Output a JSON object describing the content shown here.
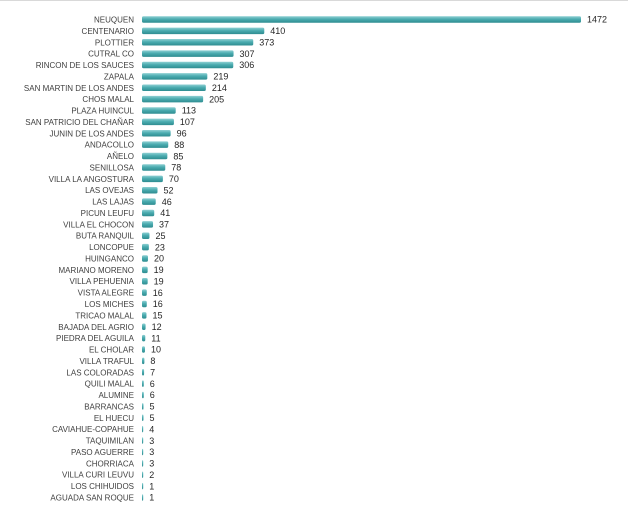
{
  "chart_data": {
    "type": "bar",
    "orientation": "horizontal",
    "colors": {
      "bar": "#4bacb0",
      "bar_top": "#8fd0d3",
      "bar_bottom": "#2e8c90"
    },
    "grid": false,
    "categories": [
      "NEUQUEN",
      "CENTENARIO",
      "PLOTTIER",
      "CUTRAL CO",
      "RINCON DE LOS SAUCES",
      "ZAPALA",
      "SAN MARTIN DE LOS ANDES",
      "CHOS MALAL",
      "PLAZA HUINCUL",
      "SAN PATRICIO DEL CHAÑAR",
      "JUNIN DE LOS ANDES",
      "ANDACOLLO",
      "AÑELO",
      "SENILLOSA",
      "VILLA LA ANGOSTURA",
      "LAS OVEJAS",
      "LAS LAJAS",
      "PICUN LEUFU",
      "VILLA EL CHOCON",
      "BUTA RANQUIL",
      "LONCOPUE",
      "HUINGANCO",
      "MARIANO MORENO",
      "VILLA PEHUENIA",
      "VISTA ALEGRE",
      "LOS MICHES",
      "TRICAO MALAL",
      "BAJADA DEL AGRIO",
      "PIEDRA DEL AGUILA",
      "EL CHOLAR",
      "VILLA TRAFUL",
      "LAS COLORADAS",
      "QUILI MALAL",
      "ALUMINE",
      "BARRANCAS",
      "EL HUECU",
      "CAVIAHUE-COPAHUE",
      "TAQUIMILAN",
      "PASO AGUERRE",
      "CHORRIACA",
      "VILLA CURI LEUVU",
      "LOS CHIHUIDOS",
      "AGUADA SAN ROQUE"
    ],
    "values": [
      1472,
      410,
      373,
      307,
      306,
      219,
      214,
      205,
      113,
      107,
      96,
      88,
      85,
      78,
      70,
      52,
      46,
      41,
      37,
      25,
      23,
      20,
      19,
      19,
      16,
      16,
      15,
      12,
      11,
      10,
      8,
      7,
      6,
      6,
      5,
      5,
      4,
      3,
      3,
      3,
      2,
      1,
      1
    ],
    "xlim": [
      0,
      1472
    ]
  }
}
